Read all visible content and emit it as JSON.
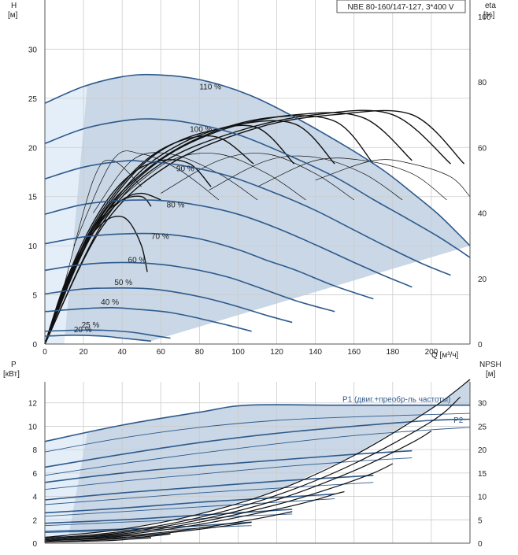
{
  "chart_data": [
    {
      "type": "line",
      "title": "NBE 80-160/147-127, 3*400 V",
      "xlabel": "Q [м³/ч]",
      "ylabel": "H",
      "ylabel_unit": "[м]",
      "y2label": "eta",
      "y2label_unit": "[%]",
      "xlim": [
        0,
        220
      ],
      "ylim": [
        0,
        35
      ],
      "y2lim": [
        0,
        105
      ],
      "xticks": [
        0,
        20,
        40,
        60,
        80,
        100,
        120,
        140,
        160,
        180,
        200
      ],
      "yticks": [
        0,
        5,
        10,
        15,
        20,
        25,
        30
      ],
      "y2ticks": [
        0,
        20,
        40,
        60,
        80,
        100
      ],
      "grid": true,
      "colors": {
        "curve": "#2e5a8c",
        "area": "#c9d7e6",
        "area_light": "#e4eef8",
        "eta": "#111111",
        "grid": "#cccccc"
      },
      "head_curves": [
        {
          "label": "110 %",
          "label_at": [
            80,
            25.9
          ],
          "x": [
            0,
            20,
            40,
            57,
            80,
            105,
            130,
            155,
            175,
            190,
            203,
            213,
            220
          ],
          "y": [
            24.5,
            26.2,
            27.2,
            27.4,
            26.9,
            25.4,
            23.0,
            20.2,
            17.7,
            15.4,
            13.3,
            11.4,
            10.0
          ]
        },
        {
          "label": "100 %",
          "label_at": [
            75,
            21.6
          ],
          "x": [
            0,
            20,
            40,
            55,
            75,
            100,
            125,
            150,
            170,
            188,
            203,
            214,
            220
          ],
          "y": [
            20.4,
            21.9,
            22.7,
            22.9,
            22.5,
            21.3,
            19.3,
            17.0,
            14.7,
            12.7,
            11.0,
            9.6,
            8.8
          ]
        },
        {
          "label": "90 %",
          "label_at": [
            68,
            17.6
          ],
          "x": [
            0,
            20,
            40,
            50,
            70,
            95,
            120,
            140,
            160,
            178,
            195,
            210
          ],
          "y": [
            16.8,
            18.0,
            18.6,
            18.6,
            18.2,
            17.1,
            15.3,
            13.6,
            11.6,
            9.8,
            8.2,
            7.0
          ]
        },
        {
          "label": "80 %",
          "label_at": [
            63,
            13.9
          ],
          "x": [
            0,
            20,
            40,
            60,
            80,
            100,
            120,
            140,
            160,
            175,
            190
          ],
          "y": [
            13.2,
            14.2,
            14.6,
            14.6,
            14.1,
            13.2,
            11.8,
            10.1,
            8.3,
            7.0,
            5.8
          ]
        },
        {
          "label": "70 %",
          "label_at": [
            55,
            10.7
          ],
          "x": [
            0,
            20,
            40,
            60,
            80,
            100,
            115,
            130,
            150,
            170
          ],
          "y": [
            10.2,
            10.9,
            11.2,
            11.2,
            10.7,
            9.6,
            8.5,
            7.5,
            5.9,
            4.6
          ]
        },
        {
          "label": "60 %",
          "label_at": [
            43,
            8.3
          ],
          "x": [
            0,
            20,
            40,
            60,
            80,
            95,
            110,
            130,
            150
          ],
          "y": [
            7.5,
            8.1,
            8.3,
            8.1,
            7.5,
            6.8,
            5.8,
            4.4,
            3.3
          ]
        },
        {
          "label": "50 %",
          "label_at": [
            36,
            6.0
          ],
          "x": [
            0,
            20,
            40,
            55,
            70,
            85,
            100,
            115,
            128
          ],
          "y": [
            5.1,
            5.6,
            5.7,
            5.6,
            5.2,
            4.6,
            3.8,
            2.9,
            2.2
          ]
        },
        {
          "label": "40 %",
          "label_at": [
            29,
            4.0
          ],
          "x": [
            0,
            20,
            35,
            50,
            65,
            80,
            95,
            107
          ],
          "y": [
            3.3,
            3.6,
            3.7,
            3.5,
            3.2,
            2.6,
            1.9,
            1.3
          ]
        },
        {
          "label": "25 %",
          "label_at": [
            19,
            1.7
          ],
          "x": [
            0,
            15,
            30,
            45,
            55,
            65
          ],
          "y": [
            1.3,
            1.4,
            1.4,
            1.2,
            0.9,
            0.6
          ]
        },
        {
          "label": "20 %",
          "label_at": [
            15,
            1.2
          ],
          "x": [
            0,
            15,
            30,
            40,
            55
          ],
          "y": [
            0.8,
            0.9,
            0.8,
            0.6,
            0.3
          ]
        }
      ],
      "efficiency_curves": [
        {
          "x": [
            0,
            10,
            20,
            30,
            38,
            44,
            50,
            53
          ],
          "y": [
            0,
            18,
            30,
            37,
            39,
            37,
            30,
            22
          ]
        },
        {
          "x": [
            0,
            10,
            20,
            30,
            40,
            50,
            55
          ],
          "y": [
            0,
            17,
            30,
            39,
            44,
            45,
            42
          ]
        },
        {
          "x": [
            0,
            10,
            20,
            30,
            40,
            50,
            60
          ],
          "y": [
            0,
            17,
            29,
            38,
            44,
            46,
            44
          ]
        },
        {
          "x": [
            0,
            15,
            30,
            45,
            60,
            75,
            86
          ],
          "y": [
            0,
            25,
            42,
            52,
            56,
            55,
            48
          ]
        },
        {
          "x": [
            0,
            15,
            30,
            50,
            70,
            90,
            108
          ],
          "y": [
            0,
            24,
            41,
            55,
            62,
            63,
            55
          ]
        },
        {
          "x": [
            0,
            20,
            40,
            60,
            85,
            110,
            129
          ],
          "y": [
            0,
            30,
            48,
            59,
            65,
            66,
            55
          ]
        },
        {
          "x": [
            0,
            20,
            45,
            70,
            100,
            130,
            150
          ],
          "y": [
            0,
            29,
            50,
            61,
            67,
            67,
            55
          ]
        },
        {
          "x": [
            0,
            25,
            50,
            80,
            115,
            150,
            170
          ],
          "y": [
            0,
            35,
            52,
            63,
            69,
            68,
            55
          ]
        },
        {
          "x": [
            0,
            25,
            55,
            90,
            130,
            165,
            190
          ],
          "y": [
            0,
            34,
            54,
            65,
            70,
            69,
            56
          ]
        },
        {
          "x": [
            0,
            30,
            60,
            100,
            140,
            180,
            210
          ],
          "y": [
            0,
            37,
            55,
            65,
            70,
            70,
            55
          ]
        },
        {
          "x": [
            0,
            30,
            65,
            110,
            150,
            190,
            217
          ],
          "y": [
            0,
            36,
            55,
            66,
            70,
            70,
            55
          ]
        },
        {
          "x": [
            10,
            25,
            35,
            50
          ],
          "y": [
            18,
            50,
            56,
            48
          ]
        },
        {
          "x": [
            15,
            35,
            50,
            70,
            90
          ],
          "y": [
            30,
            56,
            58,
            53,
            44
          ]
        },
        {
          "x": [
            25,
            45,
            65,
            90,
            110
          ],
          "y": [
            40,
            56,
            58,
            52,
            44
          ]
        },
        {
          "x": [
            40,
            65,
            90,
            115,
            135
          ],
          "y": [
            45,
            56,
            58,
            52,
            44
          ]
        },
        {
          "x": [
            60,
            90,
            115,
            140,
            160
          ],
          "y": [
            46,
            56,
            58,
            52,
            44
          ]
        },
        {
          "x": [
            85,
            115,
            140,
            165,
            185
          ],
          "y": [
            47,
            56,
            57,
            52,
            44
          ]
        },
        {
          "x": [
            110,
            140,
            165,
            190,
            208
          ],
          "y": [
            48,
            56,
            56,
            52,
            44
          ]
        },
        {
          "x": [
            140,
            170,
            190,
            210,
            220
          ],
          "y": [
            50,
            56,
            55,
            51,
            45
          ]
        }
      ]
    },
    {
      "type": "line",
      "xlabel": "",
      "ylabel": "P",
      "ylabel_unit": "[кВт]",
      "y2label": "NPSH",
      "y2label_unit": "[м]",
      "xlim": [
        0,
        220
      ],
      "ylim": [
        0,
        13.8
      ],
      "y2lim": [
        0,
        34.5
      ],
      "xticks": [
        0,
        20,
        40,
        60,
        80,
        100,
        120,
        140,
        160,
        180,
        200
      ],
      "yticks": [
        0,
        2,
        4,
        6,
        8,
        10,
        12
      ],
      "y2ticks": [
        0,
        5,
        10,
        15,
        20,
        25,
        30
      ],
      "grid": true,
      "series_labels": [
        {
          "text": "P1 (двиг.+преобр-ль частоты)",
          "at": [
            182,
            12.1
          ]
        },
        {
          "text": "P2",
          "at": [
            214,
            10.3
          ]
        }
      ],
      "power_curves": [
        {
          "x": [
            0,
            40,
            80,
            105,
            150,
            200,
            220
          ],
          "y": [
            8.7,
            10.1,
            11.2,
            11.8,
            11.8,
            11.8,
            11.8
          ]
        },
        {
          "x": [
            0,
            40,
            80,
            120,
            160,
            200,
            220
          ],
          "y": [
            7.8,
            9.0,
            9.9,
            10.5,
            10.8,
            11.0,
            11.1
          ]
        },
        {
          "x": [
            0,
            40,
            80,
            120,
            160,
            200,
            220
          ],
          "y": [
            6.5,
            7.6,
            8.6,
            9.4,
            10.0,
            10.5,
            10.6
          ]
        },
        {
          "x": [
            0,
            40,
            80,
            120,
            160,
            200,
            220
          ],
          "y": [
            5.8,
            6.8,
            7.7,
            8.5,
            9.2,
            9.7,
            9.9
          ]
        },
        {
          "x": [
            0,
            40,
            80,
            120,
            160,
            190
          ],
          "y": [
            5.2,
            6.0,
            6.6,
            7.1,
            7.6,
            7.9
          ]
        },
        {
          "x": [
            0,
            40,
            80,
            120,
            160,
            190
          ],
          "y": [
            4.6,
            5.3,
            5.9,
            6.5,
            7.0,
            7.3
          ]
        },
        {
          "x": [
            0,
            40,
            80,
            120,
            150,
            170
          ],
          "y": [
            3.7,
            4.3,
            4.8,
            5.3,
            5.6,
            5.8
          ]
        },
        {
          "x": [
            0,
            40,
            80,
            120,
            150,
            170
          ],
          "y": [
            3.3,
            3.8,
            4.3,
            4.7,
            5.0,
            5.2
          ]
        },
        {
          "x": [
            0,
            40,
            80,
            110,
            130,
            150
          ],
          "y": [
            2.6,
            3.0,
            3.5,
            3.8,
            4.0,
            4.2
          ]
        },
        {
          "x": [
            0,
            40,
            80,
            110,
            130,
            150
          ],
          "y": [
            2.3,
            2.7,
            3.1,
            3.4,
            3.6,
            3.8
          ]
        },
        {
          "x": [
            0,
            40,
            70,
            100,
            128
          ],
          "y": [
            1.7,
            2.0,
            2.3,
            2.6,
            2.9
          ]
        },
        {
          "x": [
            0,
            40,
            70,
            100,
            128
          ],
          "y": [
            1.5,
            1.8,
            2.0,
            2.3,
            2.5
          ]
        },
        {
          "x": [
            0,
            40,
            70,
            90,
            107
          ],
          "y": [
            1.0,
            1.2,
            1.4,
            1.6,
            1.8
          ]
        },
        {
          "x": [
            0,
            40,
            70,
            90,
            107
          ],
          "y": [
            0.9,
            1.1,
            1.2,
            1.4,
            1.5
          ]
        },
        {
          "x": [
            0,
            30,
            55,
            65
          ],
          "y": [
            0.5,
            0.6,
            0.7,
            0.8
          ]
        },
        {
          "x": [
            0,
            30,
            45,
            55
          ],
          "y": [
            0.3,
            0.4,
            0.45,
            0.5
          ]
        }
      ],
      "npsh_curves": [
        {
          "x": [
            0,
            40,
            80,
            120,
            160,
            200,
            220
          ],
          "y": [
            0.5,
            1.2,
            2.5,
            4.5,
            7.5,
            11.5,
            14.0
          ]
        },
        {
          "x": [
            0,
            40,
            80,
            120,
            160,
            200,
            215
          ],
          "y": [
            0.4,
            1.0,
            2.2,
            4.1,
            6.8,
            10.4,
            12.5
          ]
        },
        {
          "x": [
            0,
            40,
            80,
            120,
            160,
            190,
            200
          ],
          "y": [
            0.3,
            0.9,
            2.0,
            3.7,
            6.2,
            8.6,
            9.6
          ]
        },
        {
          "x": [
            0,
            40,
            80,
            120,
            150,
            170,
            180
          ],
          "y": [
            0.3,
            0.8,
            1.8,
            3.3,
            4.8,
            6.0,
            6.8
          ]
        },
        {
          "x": [
            0,
            40,
            80,
            120,
            140,
            150,
            155
          ],
          "y": [
            0.2,
            0.7,
            1.6,
            2.9,
            3.7,
            4.2,
            4.4
          ]
        },
        {
          "x": [
            0,
            40,
            80,
            110,
            128
          ],
          "y": [
            0.2,
            0.6,
            1.3,
            2.1,
            2.7
          ]
        },
        {
          "x": [
            0,
            40,
            70,
            90,
            107
          ],
          "y": [
            0.2,
            0.5,
            1.0,
            1.4,
            1.8
          ]
        },
        {
          "x": [
            0,
            30,
            55,
            65
          ],
          "y": [
            0.1,
            0.3,
            0.6,
            0.8
          ]
        },
        {
          "x": [
            0,
            30,
            45,
            55
          ],
          "y": [
            0.1,
            0.2,
            0.35,
            0.45
          ]
        }
      ]
    }
  ]
}
